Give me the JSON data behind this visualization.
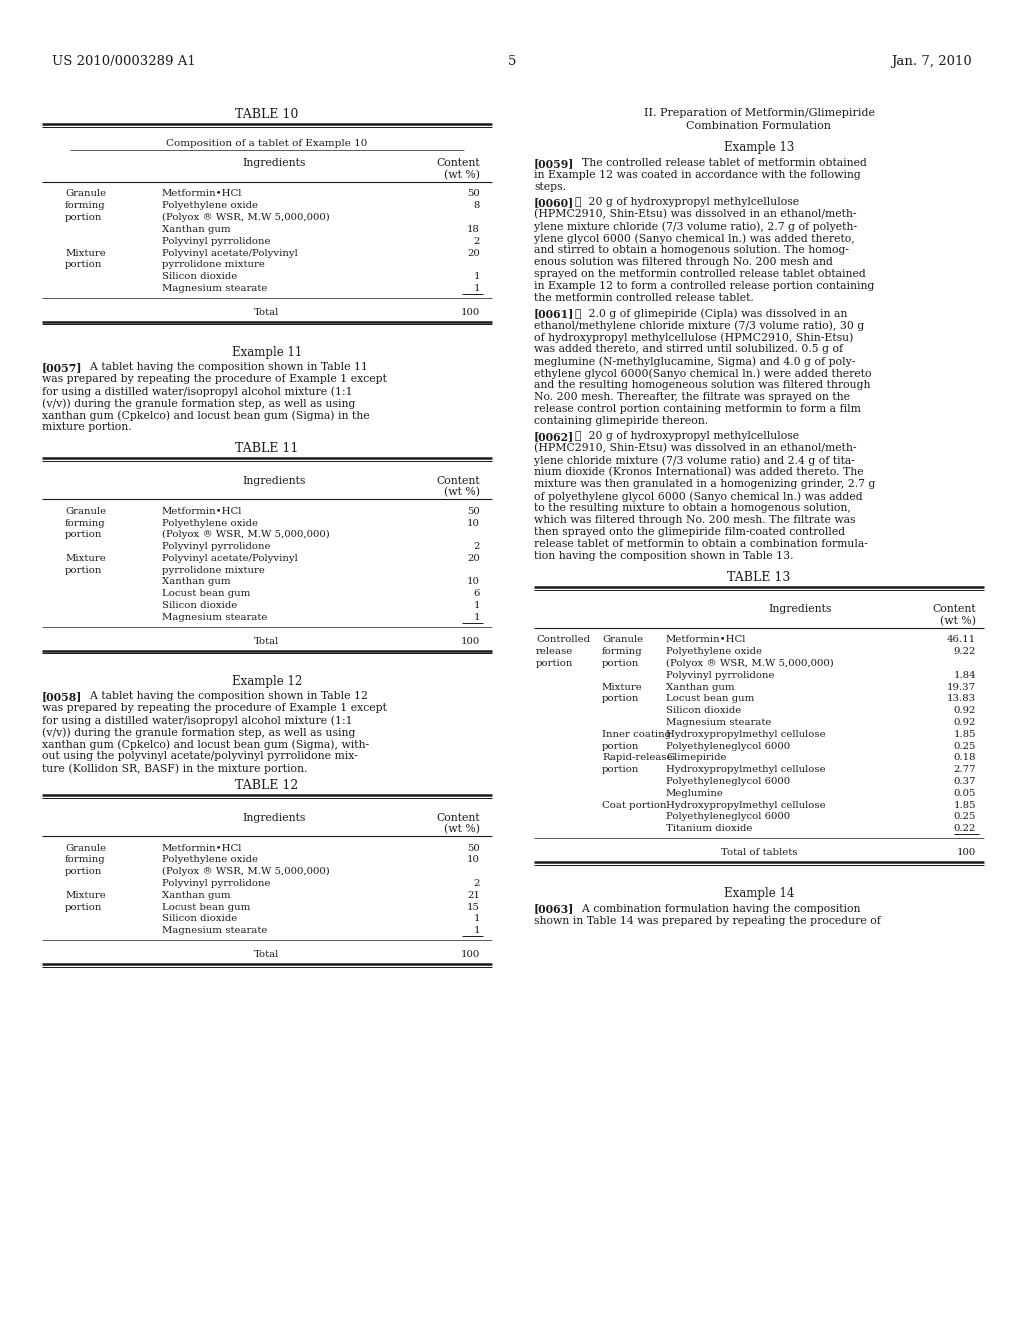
{
  "bg_color": "#ffffff",
  "text_color": "#1a1a1a",
  "header_left": "US 2010/0003289 A1",
  "header_right": "Jan. 7, 2010",
  "page_number": "5"
}
